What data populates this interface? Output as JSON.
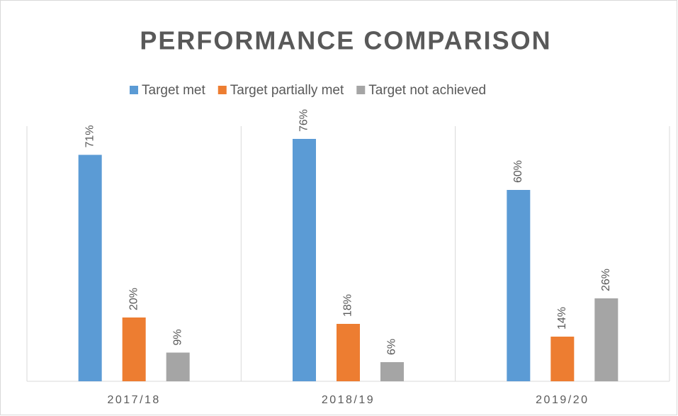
{
  "chart_data": {
    "type": "bar",
    "title": "PERFORMANCE COMPARISON",
    "categories": [
      "2017/18",
      "2018/19",
      "2019/20"
    ],
    "series": [
      {
        "name": "Target met",
        "color": "#5b9bd5",
        "values": [
          71,
          76,
          60
        ],
        "value_labels": [
          "71%",
          "76%",
          "60%"
        ]
      },
      {
        "name": "Target partially met",
        "color": "#ed7d31",
        "values": [
          20,
          18,
          14
        ],
        "value_labels": [
          "20%",
          "18%",
          "14%"
        ]
      },
      {
        "name": "Target not achieved",
        "color": "#a5a5a5",
        "values": [
          9,
          6,
          26
        ],
        "value_labels": [
          "9%",
          "6%",
          "26%"
        ]
      }
    ],
    "ylim": [
      0,
      80
    ],
    "legend": "top"
  }
}
